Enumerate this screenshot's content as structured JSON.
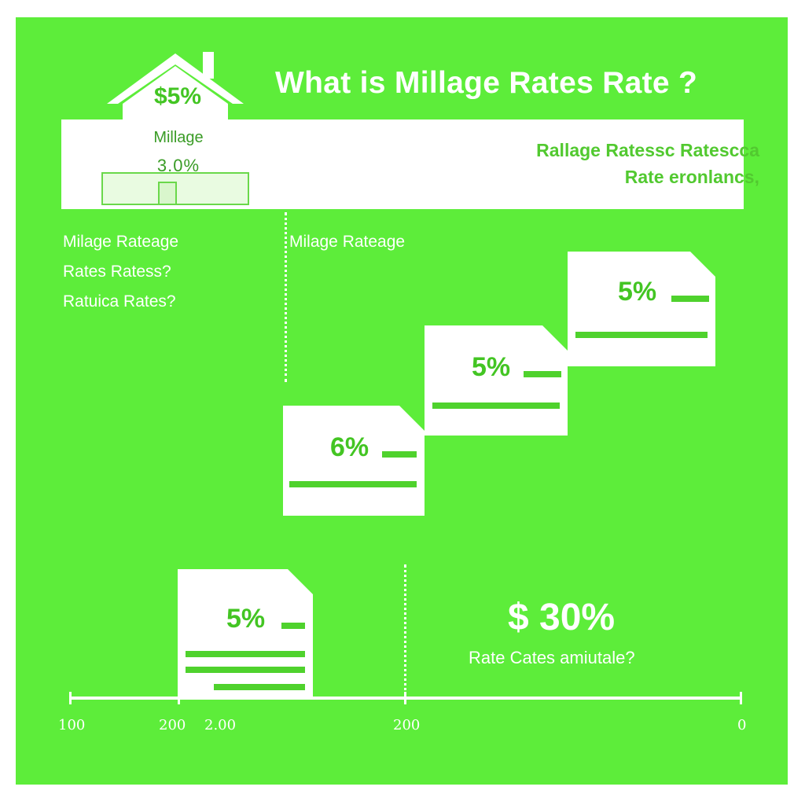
{
  "title": "What is Millage Rates Rate ?",
  "house": {
    "price": "$5%",
    "label": "Millage",
    "rate": "3.0%"
  },
  "banner": {
    "line1": "Rallage Ratessc Ratescca",
    "line2": "Rate eronlancs,"
  },
  "left_text": [
    "Milage Rateage",
    "Rates Ratess?",
    "Ratuica Rates?"
  ],
  "middle_label": "Milage Rateage",
  "documents": [
    {
      "percent": "6%"
    },
    {
      "percent": "5%"
    },
    {
      "percent": "5%"
    },
    {
      "percent": "5%"
    }
  ],
  "highlight": {
    "value": "$ 30%",
    "caption": "Rate Cates amiutale?"
  },
  "axis": {
    "labels": [
      "100",
      "200",
      "2.00",
      "200",
      "0"
    ]
  },
  "colors": {
    "background": "#5ded3a",
    "accent": "#43c523",
    "text": "#ffffff"
  }
}
